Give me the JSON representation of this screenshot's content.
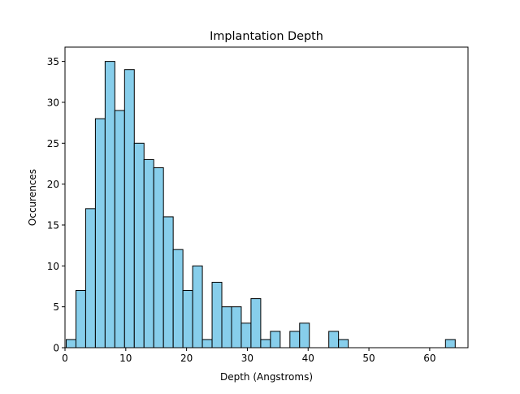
{
  "chart_data": {
    "type": "bar",
    "title": "Implantation Depth",
    "xlabel": "Depth (Angstroms)",
    "ylabel": "Occurences",
    "bin_width": 1.6,
    "bins_start": 0.2,
    "values": [
      1,
      7,
      17,
      28,
      35,
      29,
      34,
      25,
      23,
      22,
      16,
      12,
      7,
      10,
      1,
      8,
      5,
      5,
      3,
      6,
      1,
      2,
      0,
      2,
      3,
      0,
      0,
      2,
      1,
      0,
      0,
      0,
      0,
      0,
      0,
      0,
      0,
      0,
      0,
      1
    ],
    "xlim": [
      0,
      66.3
    ],
    "ylim": [
      0,
      36.75
    ],
    "xticks": [
      0,
      10,
      20,
      30,
      40,
      50,
      60
    ],
    "yticks": [
      0,
      5,
      10,
      15,
      20,
      25,
      30,
      35
    ],
    "bar_color": "#87ceeb",
    "edge_color": "#000000",
    "grid": false
  }
}
